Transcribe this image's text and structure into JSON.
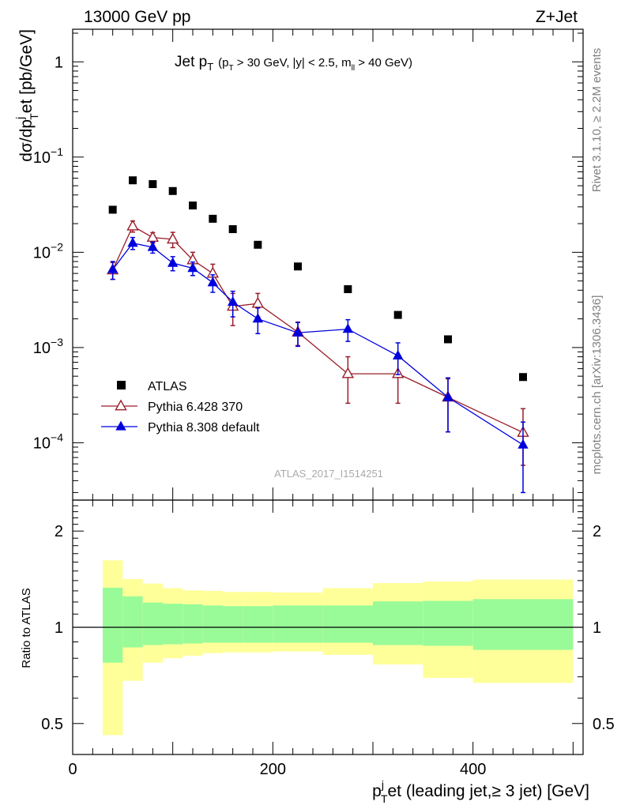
{
  "header": {
    "left": "13000 GeV pp",
    "right": "Z+Jet"
  },
  "side_labels": {
    "rivet": "Rivet 3.1.10, ≥ 2.2M events",
    "mcplots": "mcplots.cern.ch [arXiv:1306.3436]"
  },
  "plot_title": {
    "main": "Jet p",
    "main_sub": "T",
    "cuts_1": "(p",
    "cuts_1_sub": "T",
    "cuts_2": " > 30 GeV, |y| < 2.5, m",
    "cuts_2_sub": "ll",
    "cuts_3": " > 40 GeV)"
  },
  "watermark": "ATLAS_2017_I1514251",
  "y_axis_label": {
    "p1": "dσ/dp",
    "p1_sub": "T",
    "p1_sup": "j",
    "p2": "et [pb/GeV]"
  },
  "x_axis_label": {
    "p1": "p",
    "p1_sub": "T",
    "p1_sup": "j",
    "p2": "et (leading jet,≥ 3 jet) [GeV]"
  },
  "ratio_ylabel": "Ratio to ATLAS",
  "main_yticks": [
    {
      "value": 1,
      "base": "1",
      "exp": ""
    },
    {
      "value": 0.1,
      "base": "10",
      "exp": "−1"
    },
    {
      "value": 0.01,
      "base": "10",
      "exp": "−2"
    },
    {
      "value": 0.001,
      "base": "10",
      "exp": "−3"
    },
    {
      "value": 0.0001,
      "base": "10",
      "exp": "−4"
    }
  ],
  "ratio_yticks": [
    {
      "value": 2,
      "label": "2"
    },
    {
      "value": 1,
      "label": "1"
    },
    {
      "value": 0.5,
      "label": "0.5"
    }
  ],
  "xticks": [
    {
      "value": 0,
      "label": "0"
    },
    {
      "value": 200,
      "label": "200"
    },
    {
      "value": 400,
      "label": "400"
    }
  ],
  "legend": [
    {
      "label": "ATLAS",
      "color": "#000000",
      "marker": "square"
    },
    {
      "label": "Pythia 6.428 370",
      "color": "#9a1d2a",
      "marker": "open-triangle"
    },
    {
      "label": "Pythia 8.308 default",
      "color": "#0000dd",
      "marker": "filled-triangle"
    }
  ],
  "chart_data": {
    "type": "scatter",
    "x_unit": "GeV",
    "xlim": [
      0,
      510
    ],
    "ylim_main": [
      2.5e-05,
      2.2
    ],
    "y_scale_main": "log",
    "ylim_ratio": [
      0.4,
      2.5
    ],
    "y_scale_ratio": "log",
    "bins": [
      [
        30,
        50
      ],
      [
        50,
        70
      ],
      [
        70,
        90
      ],
      [
        90,
        110
      ],
      [
        110,
        130
      ],
      [
        130,
        150
      ],
      [
        150,
        170
      ],
      [
        170,
        200
      ],
      [
        200,
        250
      ],
      [
        250,
        300
      ],
      [
        300,
        350
      ],
      [
        350,
        400
      ],
      [
        400,
        500
      ]
    ],
    "series": [
      {
        "name": "ATLAS",
        "color": "#000000",
        "x": [
          40,
          60,
          80,
          100,
          120,
          140,
          160,
          185,
          225,
          275,
          325,
          375,
          450
        ],
        "y": [
          0.028,
          0.057,
          0.052,
          0.044,
          0.031,
          0.0225,
          0.0175,
          0.012,
          0.0071,
          0.0041,
          0.0022,
          0.00122,
          0.00049
        ]
      },
      {
        "name": "Pythia 6.428 370",
        "color": "#9a1d2a",
        "x": [
          40,
          60,
          80,
          100,
          120,
          140,
          160,
          185,
          225,
          275,
          325,
          375,
          450
        ],
        "y": [
          0.0065,
          0.0188,
          0.0143,
          0.0137,
          0.0083,
          0.006,
          0.0027,
          0.0029,
          0.00145,
          0.00053,
          0.00053,
          0.0003,
          0.000128
        ],
        "err_low": [
          0.0013,
          0.0025,
          0.0018,
          0.0025,
          0.0017,
          0.0015,
          0.001,
          0.0008,
          0.0004,
          0.00027,
          0.00027,
          0.00017,
          7e-05
        ],
        "err_high": [
          0.0013,
          0.0025,
          0.0018,
          0.0025,
          0.0017,
          0.0015,
          0.001,
          0.0008,
          0.0004,
          0.00027,
          0.00027,
          0.00017,
          0.0001
        ]
      },
      {
        "name": "Pythia 8.308 default",
        "color": "#0000dd",
        "x": [
          40,
          60,
          80,
          100,
          120,
          140,
          160,
          185,
          225,
          275,
          325,
          375,
          450
        ],
        "y": [
          0.0066,
          0.0125,
          0.0113,
          0.0077,
          0.0068,
          0.0048,
          0.003,
          0.002,
          0.00143,
          0.00156,
          0.00082,
          0.0003,
          9.5e-05
        ],
        "err_low": [
          0.0014,
          0.0018,
          0.0015,
          0.0013,
          0.0011,
          0.001,
          0.0009,
          0.0006,
          0.0004,
          0.0004,
          0.0003,
          0.00017,
          6.5e-05
        ],
        "err_high": [
          0.0014,
          0.0018,
          0.0015,
          0.0013,
          0.0011,
          0.001,
          0.0009,
          0.0006,
          0.0004,
          0.0004,
          0.0003,
          0.00018,
          7e-05
        ]
      }
    ],
    "ratio_bands": {
      "inner_color": "#98fb98",
      "outer_color": "#ffff99",
      "inner_low": [
        0.775,
        0.865,
        0.88,
        0.885,
        0.89,
        0.895,
        0.895,
        0.895,
        0.895,
        0.895,
        0.88,
        0.875,
        0.85
      ],
      "inner_high": [
        1.33,
        1.25,
        1.195,
        1.185,
        1.18,
        1.17,
        1.165,
        1.165,
        1.17,
        1.17,
        1.205,
        1.21,
        1.225
      ],
      "outer_low": [
        0.46,
        0.68,
        0.775,
        0.8,
        0.815,
        0.83,
        0.835,
        0.835,
        0.84,
        0.82,
        0.765,
        0.695,
        0.67
      ],
      "outer_high": [
        1.62,
        1.415,
        1.37,
        1.325,
        1.305,
        1.3,
        1.29,
        1.29,
        1.285,
        1.325,
        1.375,
        1.39,
        1.41
      ]
    }
  }
}
